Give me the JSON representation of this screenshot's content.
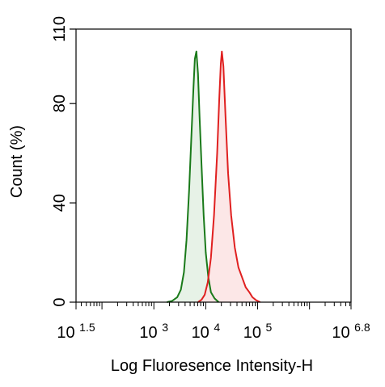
{
  "chart_data": {
    "type": "area",
    "title": "",
    "xlabel": "Log Fluoresence Intensity-H",
    "ylabel": "Count  (%)",
    "x_scale": "log10",
    "xlim_log10": [
      1.5,
      6.8
    ],
    "ylim": [
      0,
      110
    ],
    "x_ticks": [
      {
        "base": "10",
        "exp": "1.5",
        "log10": 1.5
      },
      {
        "base": "10",
        "exp": "3",
        "log10": 3
      },
      {
        "base": "10",
        "exp": "4",
        "log10": 4
      },
      {
        "base": "10",
        "exp": "5",
        "log10": 5
      },
      {
        "base": "10",
        "exp": "6.8",
        "log10": 6.8
      }
    ],
    "y_ticks": [
      0,
      40,
      80,
      110
    ],
    "grid": false,
    "series": [
      {
        "color": "#1a7a1a",
        "fill": "#e3f0e3",
        "points": [
          [
            3.25,
            0
          ],
          [
            3.35,
            0.5
          ],
          [
            3.45,
            2
          ],
          [
            3.52,
            5
          ],
          [
            3.58,
            12
          ],
          [
            3.63,
            25
          ],
          [
            3.68,
            45
          ],
          [
            3.72,
            65
          ],
          [
            3.76,
            85
          ],
          [
            3.79,
            98
          ],
          [
            3.82,
            101
          ],
          [
            3.85,
            92
          ],
          [
            3.88,
            75
          ],
          [
            3.92,
            55
          ],
          [
            3.96,
            35
          ],
          [
            4.0,
            20
          ],
          [
            4.05,
            10
          ],
          [
            4.1,
            4
          ],
          [
            4.17,
            1.5
          ],
          [
            4.25,
            0
          ]
        ]
      },
      {
        "color": "#e02020",
        "fill": "#fbe3e3",
        "points": [
          [
            3.85,
            0
          ],
          [
            3.92,
            1
          ],
          [
            3.98,
            3
          ],
          [
            4.04,
            8
          ],
          [
            4.1,
            18
          ],
          [
            4.16,
            35
          ],
          [
            4.22,
            60
          ],
          [
            4.26,
            82
          ],
          [
            4.29,
            96
          ],
          [
            4.31,
            101
          ],
          [
            4.34,
            95
          ],
          [
            4.38,
            75
          ],
          [
            4.43,
            52
          ],
          [
            4.49,
            35
          ],
          [
            4.56,
            22
          ],
          [
            4.63,
            14
          ],
          [
            4.7,
            10
          ],
          [
            4.77,
            6
          ],
          [
            4.84,
            4
          ],
          [
            4.9,
            2
          ],
          [
            4.97,
            0.8
          ],
          [
            5.05,
            0
          ]
        ]
      }
    ]
  }
}
